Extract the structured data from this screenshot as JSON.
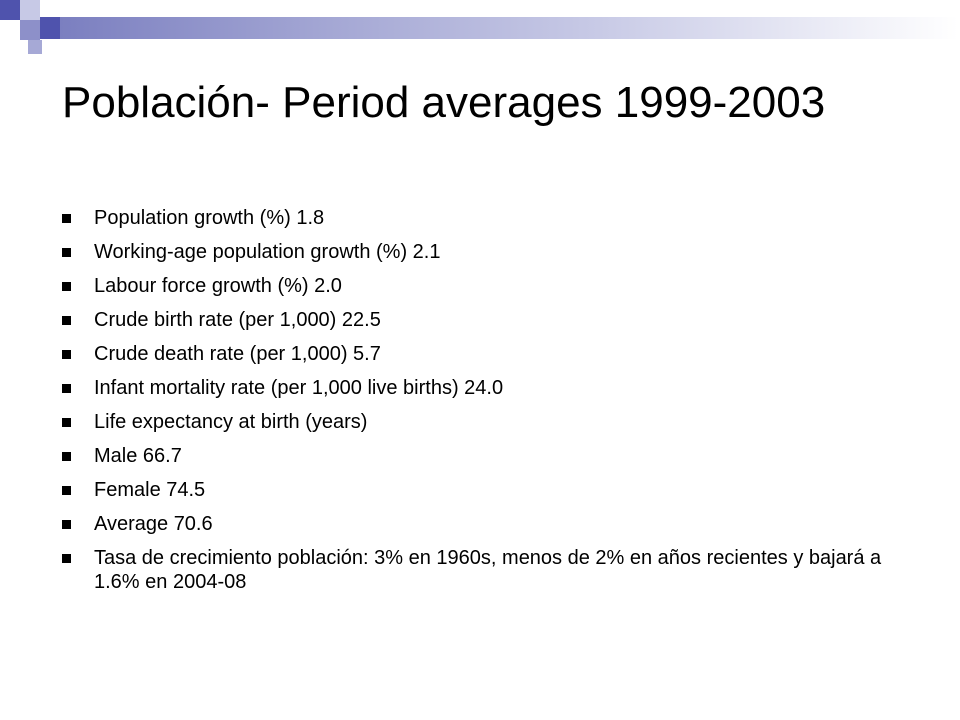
{
  "slide": {
    "title": "Población- Period averages 1999-2003",
    "bullets": [
      "Population growth (%) 1.8",
      "Working-age population growth (%) 2.1",
      "Labour force growth (%) 2.0",
      "Crude birth rate (per 1,000) 22.5",
      "Crude death rate (per 1,000) 5.7",
      "Infant mortality rate (per 1,000 live births) 24.0",
      "Life expectancy at birth (years)",
      "Male 66.7",
      "Female 74.5",
      "Average 70.6",
      "Tasa de crecimiento población: 3% en 1960s, menos de 2% en años recientes y bajará  a 1.6% en 2004-08"
    ]
  },
  "theme": {
    "accent": "#4f53ad",
    "accent_light": "#c7c9e6",
    "text": "#000000",
    "background": "#ffffff"
  }
}
